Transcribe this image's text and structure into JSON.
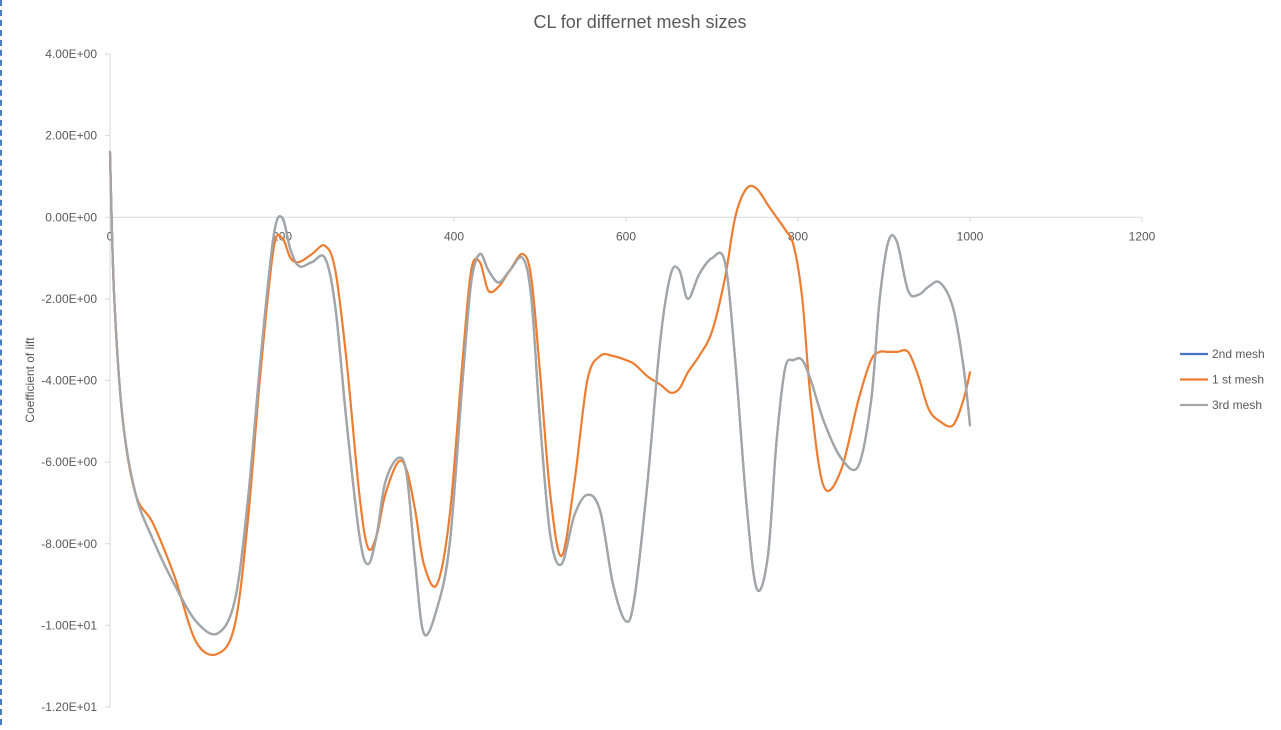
{
  "chart_data": {
    "type": "line",
    "title": "CL for differnet mesh sizes",
    "xlabel": "",
    "ylabel": "Coefficient of lift",
    "xlim": [
      0,
      1200
    ],
    "ylim": [
      -12,
      4
    ],
    "x_ticks": [
      0,
      200,
      400,
      600,
      800,
      1000,
      1200
    ],
    "x_tick_labels": [
      "0",
      "200",
      "400",
      "600",
      "800",
      "1000",
      "1200"
    ],
    "y_ticks": [
      4,
      2,
      0,
      -2,
      -4,
      -6,
      -8,
      -10,
      -12
    ],
    "y_tick_labels": [
      "4.00E+00",
      "2.00E+00",
      "0.00E+00",
      "-2.00E+00",
      "-4.00E+00",
      "-6.00E+00",
      "-8.00E+00",
      "-1.00E+01",
      "-1.20E+01"
    ],
    "grid": false,
    "legend_position": "right",
    "series": [
      {
        "name": "2nd mesh",
        "color": "#4472c4",
        "x": [
          0,
          5,
          15,
          30,
          50,
          75,
          100,
          125,
          145,
          160,
          175,
          190,
          200,
          210,
          220,
          235,
          250,
          262,
          275,
          290,
          300,
          310,
          320,
          335,
          345,
          355,
          365,
          380,
          395,
          410,
          420,
          430,
          440,
          452,
          465,
          480,
          490,
          500,
          512,
          525,
          540,
          555,
          570,
          585,
          600,
          610,
          625,
          640,
          652,
          662,
          672,
          685,
          700,
          715,
          727,
          740,
          752,
          765,
          775,
          785,
          795,
          805,
          815,
          830,
          850,
          870,
          885,
          895,
          905,
          915,
          928,
          940,
          952,
          965,
          980,
          992,
          1000
        ],
        "y": [
          1.6,
          -2.0,
          -5.0,
          -6.8,
          -7.9,
          -9.0,
          -9.9,
          -10.2,
          -9.4,
          -7.0,
          -3.5,
          -0.5,
          0.0,
          -0.8,
          -1.2,
          -1.1,
          -1.0,
          -2.2,
          -5.0,
          -7.8,
          -8.5,
          -7.8,
          -6.5,
          -5.9,
          -6.3,
          -8.5,
          -10.2,
          -9.6,
          -8.0,
          -4.0,
          -1.6,
          -0.9,
          -1.3,
          -1.6,
          -1.3,
          -1.0,
          -2.0,
          -5.0,
          -7.8,
          -8.5,
          -7.3,
          -6.8,
          -7.2,
          -9.0,
          -9.9,
          -9.3,
          -6.5,
          -3.0,
          -1.4,
          -1.3,
          -2.0,
          -1.4,
          -1.0,
          -1.1,
          -3.5,
          -7.0,
          -9.1,
          -8.3,
          -5.5,
          -3.7,
          -3.5,
          -3.5,
          -4.0,
          -5.0,
          -5.9,
          -6.1,
          -4.5,
          -2.0,
          -0.6,
          -0.6,
          -1.8,
          -1.9,
          -1.7,
          -1.6,
          -2.2,
          -3.6,
          -5.1
        ]
      },
      {
        "name": "1 st mesh",
        "color": "#ed7d31",
        "x": [
          0,
          5,
          15,
          30,
          50,
          75,
          100,
          125,
          145,
          160,
          175,
          190,
          200,
          210,
          220,
          235,
          250,
          262,
          275,
          290,
          300,
          310,
          320,
          335,
          345,
          355,
          365,
          380,
          395,
          410,
          420,
          430,
          440,
          452,
          465,
          480,
          490,
          500,
          512,
          525,
          540,
          555,
          570,
          585,
          600,
          610,
          625,
          640,
          652,
          662,
          672,
          685,
          700,
          715,
          727,
          740,
          752,
          765,
          775,
          785,
          795,
          805,
          815,
          830,
          850,
          870,
          885,
          895,
          905,
          915,
          928,
          940,
          952,
          965,
          980,
          992,
          1000
        ],
        "y": [
          1.6,
          -2.0,
          -5.0,
          -6.8,
          -7.5,
          -8.8,
          -10.4,
          -10.7,
          -10.0,
          -7.5,
          -3.8,
          -0.8,
          -0.5,
          -1.0,
          -1.1,
          -0.9,
          -0.7,
          -1.3,
          -3.5,
          -6.8,
          -8.1,
          -7.8,
          -6.8,
          -6.0,
          -6.2,
          -7.2,
          -8.5,
          -9.0,
          -7.3,
          -3.5,
          -1.3,
          -1.1,
          -1.8,
          -1.7,
          -1.3,
          -0.9,
          -1.5,
          -3.8,
          -6.8,
          -8.3,
          -6.5,
          -4.0,
          -3.4,
          -3.4,
          -3.5,
          -3.6,
          -3.9,
          -4.1,
          -4.3,
          -4.2,
          -3.8,
          -3.4,
          -2.8,
          -1.5,
          0.0,
          0.7,
          0.7,
          0.3,
          0.0,
          -0.3,
          -0.7,
          -2.0,
          -4.5,
          -6.6,
          -6.2,
          -4.5,
          -3.5,
          -3.3,
          -3.3,
          -3.3,
          -3.3,
          -3.9,
          -4.7,
          -5.0,
          -5.1,
          -4.5,
          -3.8
        ]
      },
      {
        "name": "3rd mesh",
        "color": "#a5a5a5",
        "x": [
          0,
          5,
          15,
          30,
          50,
          75,
          100,
          125,
          145,
          160,
          175,
          190,
          200,
          210,
          220,
          235,
          250,
          262,
          275,
          290,
          300,
          310,
          320,
          335,
          345,
          355,
          365,
          380,
          395,
          410,
          420,
          430,
          440,
          452,
          465,
          480,
          490,
          500,
          512,
          525,
          540,
          555,
          570,
          585,
          600,
          610,
          625,
          640,
          652,
          662,
          672,
          685,
          700,
          715,
          727,
          740,
          752,
          765,
          775,
          785,
          795,
          805,
          815,
          830,
          850,
          870,
          885,
          895,
          905,
          915,
          928,
          940,
          952,
          965,
          980,
          992,
          1000
        ],
        "y": [
          1.6,
          -2.0,
          -5.0,
          -6.8,
          -7.9,
          -9.0,
          -9.9,
          -10.2,
          -9.4,
          -7.0,
          -3.5,
          -0.5,
          0.0,
          -0.8,
          -1.2,
          -1.1,
          -1.0,
          -2.2,
          -5.0,
          -7.8,
          -8.5,
          -7.8,
          -6.5,
          -5.9,
          -6.3,
          -8.5,
          -10.2,
          -9.6,
          -8.0,
          -4.0,
          -1.6,
          -0.9,
          -1.3,
          -1.6,
          -1.3,
          -1.0,
          -2.0,
          -5.0,
          -7.8,
          -8.5,
          -7.3,
          -6.8,
          -7.2,
          -9.0,
          -9.9,
          -9.3,
          -6.5,
          -3.0,
          -1.4,
          -1.3,
          -2.0,
          -1.4,
          -1.0,
          -1.1,
          -3.5,
          -7.0,
          -9.1,
          -8.3,
          -5.5,
          -3.7,
          -3.5,
          -3.5,
          -4.0,
          -5.0,
          -5.9,
          -6.1,
          -4.5,
          -2.0,
          -0.6,
          -0.6,
          -1.8,
          -1.9,
          -1.7,
          -1.6,
          -2.2,
          -3.6,
          -5.1
        ]
      }
    ]
  }
}
